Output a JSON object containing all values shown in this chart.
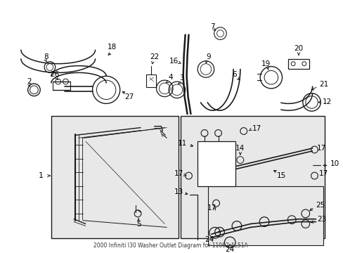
{
  "title": "2000 Infiniti I30 Washer Outlet Diagram for 11062-AL51A",
  "bg_color": "#ffffff",
  "box_bg": "#e8e8e8",
  "line_color": "#1a1a1a",
  "label_color": "#000000",
  "figsize": [
    4.89,
    3.6
  ],
  "dpi": 100
}
